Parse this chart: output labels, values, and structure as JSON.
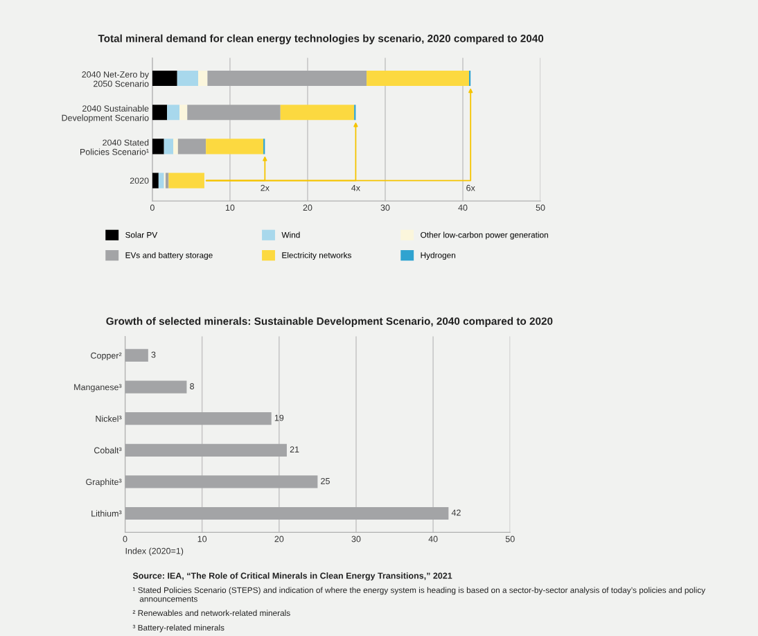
{
  "chart_data": [
    {
      "type": "bar",
      "orientation": "horizontal",
      "stacked": true,
      "title": "Total mineral demand for clean energy technologies by scenario, 2020 compared to 2040",
      "categories": [
        "2040 Net-Zero by\n2050 Scenario",
        "2040 Sustainable\nDevelopment Scenario",
        "2040 Stated\nPolicies Scenario¹",
        "2020"
      ],
      "series": [
        {
          "name": "Solar PV",
          "color": "#000000",
          "values": [
            3.2,
            1.9,
            1.5,
            0.8
          ]
        },
        {
          "name": "Wind",
          "color": "#a8d8ec",
          "values": [
            2.7,
            1.6,
            1.2,
            0.7
          ]
        },
        {
          "name": "Other low-carbon power generation",
          "color": "#fbf6dc",
          "values": [
            1.2,
            1.0,
            0.6,
            0.2
          ]
        },
        {
          "name": "EVs and battery storage",
          "color": "#a3a4a6",
          "values": [
            20.5,
            12.0,
            3.6,
            0.4
          ]
        },
        {
          "name": "Electricity networks",
          "color": "#fcd940",
          "values": [
            13.2,
            9.5,
            7.4,
            4.6
          ]
        },
        {
          "name": "Hydrogen",
          "color": "#2fa3d0",
          "values": [
            0.2,
            0.2,
            0.2,
            0
          ]
        }
      ],
      "annotations": [
        "2x",
        "4x",
        "6x"
      ],
      "xlim": [
        0,
        50
      ],
      "xticks": [
        0,
        10,
        20,
        30,
        40,
        50
      ],
      "grid": "x",
      "legend": "bottom"
    },
    {
      "type": "bar",
      "orientation": "horizontal",
      "title": "Growth of selected minerals: Sustainable Development Scenario, 2040 compared to 2020",
      "categories": [
        "Copper²",
        "Manganese³",
        "Nickel³",
        "Cobalt³",
        "Graphite³",
        "Lithium³"
      ],
      "values": [
        3,
        8,
        19,
        21,
        25,
        42
      ],
      "color": "#a3a4a6",
      "data_labels": true,
      "xlabel": "Index (2020=1)",
      "xlim": [
        0,
        50
      ],
      "xticks": [
        0,
        10,
        20,
        30,
        40,
        50
      ],
      "grid": "x",
      "annotations": [
        "Source: IEA, “The Role of Critical Minerals in Clean Energy Transitions,” 2021",
        "¹ Stated Policies Scenario (STEPS) and indication of where the energy system is heading is based on a sector-by-sector analysis of today’s policies and policy\n   announcements",
        "² Renewables and network-related minerals",
        "³ Battery-related minerals"
      ]
    }
  ]
}
